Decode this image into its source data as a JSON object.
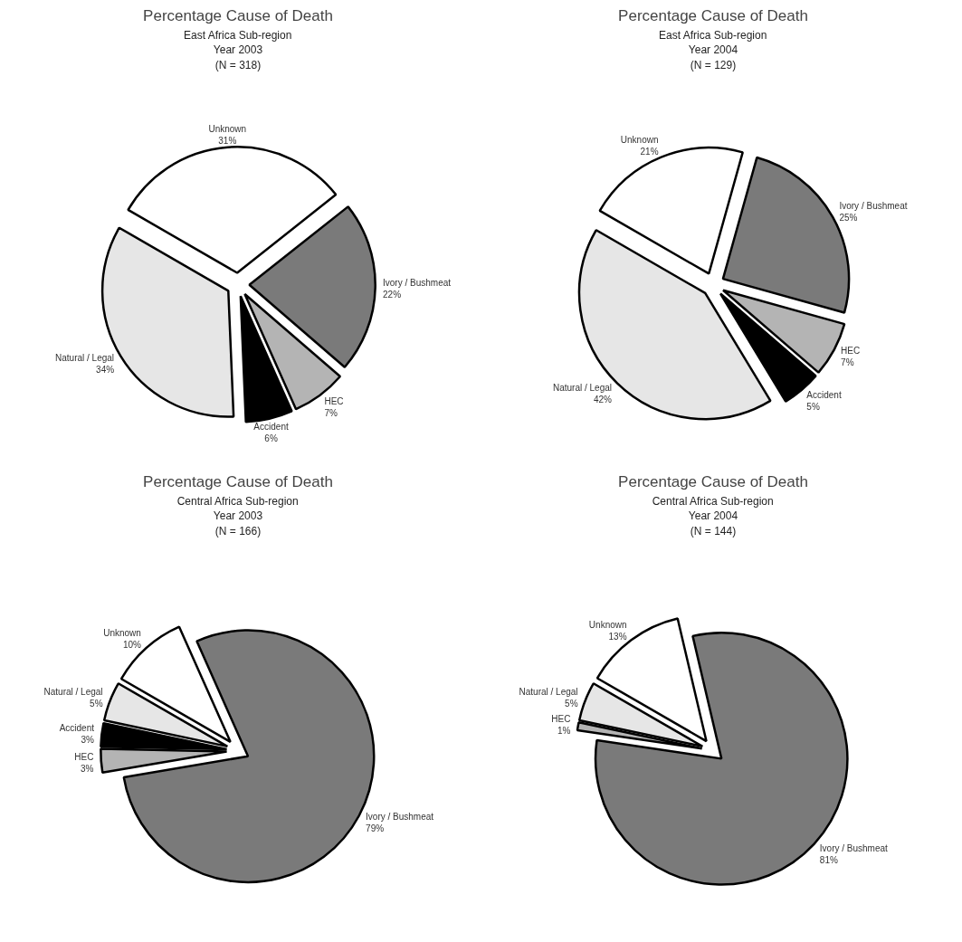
{
  "chart_data": [
    {
      "type": "pie",
      "title": "Percentage Cause of Death",
      "subtitle": "East Africa Sub-region\nYear 2003\n(N = 318)",
      "categories": [
        "Unknown",
        "Ivory / Bushmeat",
        "HEC",
        "Accident",
        "Natural / Legal"
      ],
      "values": [
        31,
        22,
        7,
        6,
        34
      ],
      "colors": [
        "#ffffff",
        "#7a7a7a",
        "#b4b4b4",
        "#000000",
        "#e6e6e6"
      ],
      "value_labels": [
        "31%",
        "22%",
        "7%",
        "6%",
        "34%"
      ]
    },
    {
      "type": "pie",
      "title": "Percentage Cause of Death",
      "subtitle": "East Africa Sub-region\nYear 2004\n(N = 129)",
      "categories": [
        "Unknown",
        "Ivory / Bushmeat",
        "HEC",
        "Accident",
        "Natural / Legal"
      ],
      "values": [
        21,
        25,
        7,
        5,
        42
      ],
      "colors": [
        "#ffffff",
        "#7a7a7a",
        "#b4b4b4",
        "#000000",
        "#e6e6e6"
      ],
      "value_labels": [
        "21%",
        "25%",
        "7%",
        "5%",
        "42%"
      ]
    },
    {
      "type": "pie",
      "title": "Percentage Cause of Death",
      "subtitle": "Central Africa Sub-region\nYear 2003\n(N = 166)",
      "categories": [
        "Unknown",
        "Ivory / Bushmeat",
        "HEC",
        "Accident",
        "Natural / Legal"
      ],
      "values": [
        10,
        79,
        3,
        3,
        5
      ],
      "colors": [
        "#ffffff",
        "#7a7a7a",
        "#b4b4b4",
        "#000000",
        "#e6e6e6"
      ],
      "value_labels": [
        "10%",
        "79%",
        "3%",
        "3%",
        "5%"
      ]
    },
    {
      "type": "pie",
      "title": "Percentage Cause of Death",
      "subtitle": "Central Africa Sub-region\nYear 2004\n(N = 144)",
      "categories": [
        "Unknown",
        "Ivory / Bushmeat",
        "HEC",
        "Natural / Legal"
      ],
      "values": [
        13,
        81,
        1,
        5
      ],
      "colors": [
        "#ffffff",
        "#7a7a7a",
        "#b4b4b4",
        "#e6e6e6"
      ],
      "value_labels": [
        "13%",
        "81%",
        "1%",
        "5%"
      ]
    }
  ]
}
